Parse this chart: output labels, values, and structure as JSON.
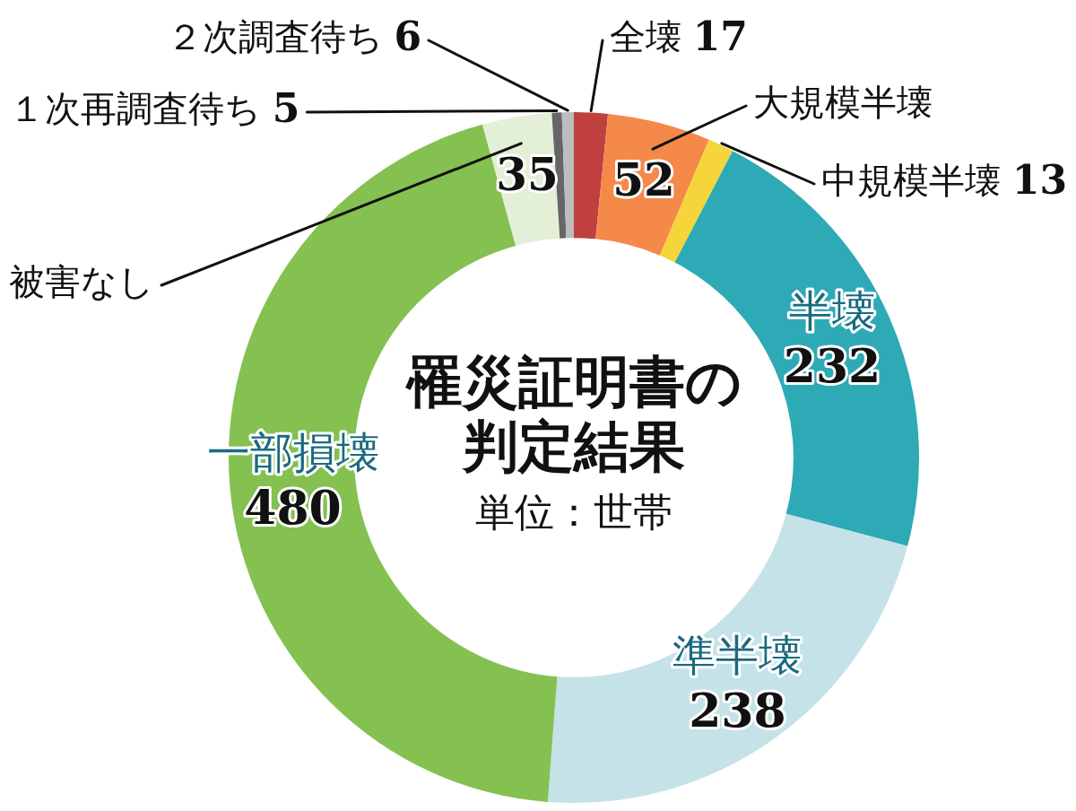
{
  "chart_data": {
    "type": "donut",
    "title": "罹災証明書の判定結果",
    "subtitle": "単位：世帯",
    "categories": [
      "全壊",
      "大規模半壊",
      "中規模半壊",
      "半壊",
      "準半壊",
      "一部損壊",
      "被害なし",
      "１次再調査待ち",
      "２次調査待ち"
    ],
    "values": [
      17,
      52,
      13,
      232,
      238,
      480,
      35,
      5,
      6
    ],
    "colors": [
      "#c0403f",
      "#f4894a",
      "#f5d53a",
      "#2daab5",
      "#c5e2e8",
      "#84c150",
      "#e3efd6",
      "#666666",
      "#bdbdbd"
    ],
    "data_labels": true,
    "legend": false
  }
}
